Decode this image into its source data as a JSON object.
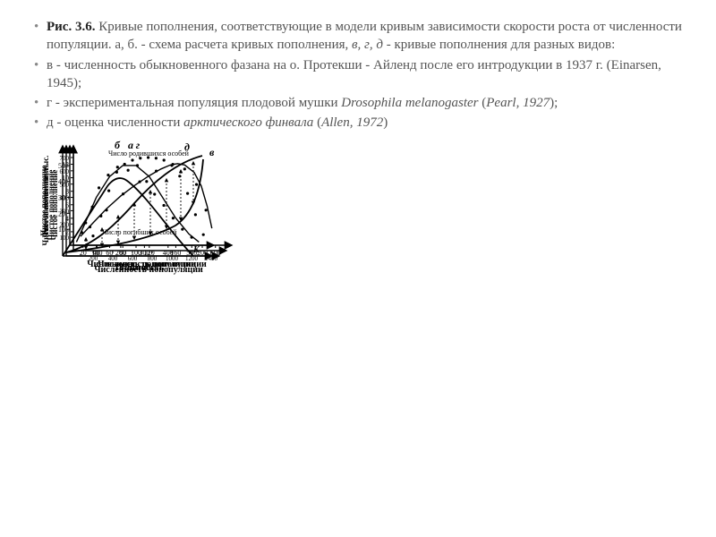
{
  "caption": {
    "l1a": "Рис. 3.6. ",
    "l1b": "Кривые пополнения, соответствующие в модели кривым зависимости скорости роста от численности популяции. а, б. - схема расчета кривых пополнения,",
    "l1c": " в, г, д ",
    "l1d": "- кривые пополнения для разных видов:",
    "l2": "в - численность обыкновенного фазана на о. Протекши - Айленд после его интродукции в 1937 г. (Einarsen, 1945);",
    "l3a": " г - экспериментальная популяция плодовой мушки ",
    "l3b": "Drosophila melanogaster",
    "l3c": " (",
    "l3d": "Pearl, 1927",
    "l3e": ");",
    "l4a": " д - оценка численности ",
    "l4b": "арктического финвала",
    "l4c": " (",
    "l4d": "Allen, 1972",
    "l4e": ")"
  },
  "labels": {
    "net": "Чистое пополнение",
    "dens": "Плотность",
    "pop": "Численность попопуляции",
    "popTh": "Чистое пополнение, тыс.",
    "born": "Число родившихся особей",
    "dead": "Число погибших особей",
    "K": "K"
  },
  "tags": {
    "a": "а",
    "b": "б",
    "v": "в",
    "g": "г",
    "d": "д"
  },
  "panelV": {
    "yTicks": [
      100,
      200,
      300,
      400,
      500,
      600,
      700
    ],
    "xTicks": [
      200,
      400,
      600,
      800,
      1000,
      1200,
      1400
    ],
    "points": [
      [
        200,
        110
      ],
      [
        280,
        260
      ],
      [
        360,
        450
      ],
      [
        440,
        590
      ],
      [
        520,
        650
      ],
      [
        600,
        680
      ],
      [
        680,
        695
      ],
      [
        760,
        700
      ],
      [
        840,
        695
      ],
      [
        920,
        680
      ],
      [
        1000,
        640
      ],
      [
        1080,
        560
      ],
      [
        1160,
        430
      ],
      [
        1240,
        270
      ],
      [
        1320,
        120
      ]
    ]
  },
  "panelG": {
    "yTicks": [
      10,
      20,
      30,
      40,
      50
    ],
    "xTicks": [
      20,
      40,
      60,
      80,
      100,
      120,
      160,
      200
    ],
    "curve": [
      [
        10,
        2
      ],
      [
        20,
        11
      ],
      [
        40,
        30
      ],
      [
        60,
        43
      ],
      [
        80,
        50
      ],
      [
        100,
        50
      ],
      [
        120,
        43
      ],
      [
        140,
        30
      ],
      [
        160,
        17
      ],
      [
        180,
        7
      ],
      [
        195,
        2
      ]
    ],
    "points": [
      [
        18,
        8
      ],
      [
        24,
        14
      ],
      [
        34,
        24
      ],
      [
        44,
        36
      ],
      [
        58,
        44
      ],
      [
        72,
        49
      ],
      [
        88,
        47
      ],
      [
        102,
        50
      ],
      [
        116,
        40
      ],
      [
        128,
        32
      ],
      [
        142,
        25
      ],
      [
        156,
        17
      ],
      [
        170,
        10
      ],
      [
        184,
        5
      ]
    ]
  },
  "panelD": {
    "yTicks": [
      2,
      4,
      6,
      8,
      10,
      12
    ],
    "xTicks": [
      100,
      200,
      300,
      400,
      500,
      600
    ],
    "curve": [
      [
        30,
        1.3
      ],
      [
        80,
        3.2
      ],
      [
        140,
        5.4
      ],
      [
        200,
        7.3
      ],
      [
        260,
        8.9
      ],
      [
        320,
        10.3
      ],
      [
        370,
        11.3
      ],
      [
        410,
        11.9
      ],
      [
        440,
        12.1
      ],
      [
        470,
        11.9
      ],
      [
        510,
        10.8
      ],
      [
        540,
        8.8
      ],
      [
        565,
        5.8
      ],
      [
        585,
        2.5
      ]
    ],
    "points": [
      [
        70,
        2.7
      ],
      [
        140,
        5.2
      ],
      [
        210,
        7.6
      ],
      [
        280,
        9.4
      ],
      [
        350,
        11.0
      ],
      [
        420,
        12.0
      ],
      [
        470,
        11.3
      ],
      [
        520,
        9.0
      ],
      [
        560,
        5.2
      ]
    ]
  },
  "style": {
    "bg": "#ffffff",
    "text": "#545454",
    "axis": "#000000",
    "ptRadius": 1.6,
    "axisWidth": 1.4
  }
}
